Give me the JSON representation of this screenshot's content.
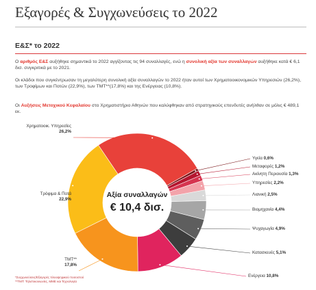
{
  "header": {
    "title": "Εξαγορές & Συγχωνεύσεις το 2022"
  },
  "section": {
    "title": "Ε&Σ* το 2022"
  },
  "paragraphs": [
    [
      "Ο ",
      "αριθμός Ε&Σ",
      " αυξήθηκε σημαντικά το 2022 αγγίζοντας τις 94 συναλλαγές, ενώ η ",
      "συνολική αξία των συναλλαγών",
      " αυξήθηκε κατά € 6,1 δισ. συγκριτικά με το 2021."
    ],
    [
      "Οι κλάδοι που συγκέντρωσαν τη μεγαλύτερη συνολική αξία συναλλαγών το 2022 ήταν αυτοί των Χρηματοοικονομικών Υπηρεσιών (26,2%), των Τροφίμων και Ποτών (22,9%), των TMT**(17,8%) και της Ενέργειας (10,8%)."
    ],
    [
      "Οι ",
      "Αυξήσεις Μετοχικού Κεφαλαίου",
      " στο Χρηματιστήριο Αθηνών που καλύφθηκαν από στρατηγικούς επενδυτές ανήλθαν σε μόλις € 489,1 εκ."
    ]
  ],
  "chart_data": {
    "type": "donut",
    "center_label": [
      "Αξία συναλλαγών",
      "€ 10,4 δισ."
    ],
    "categories": [
      "Χρηματοοικ. Υπηρεσίες",
      "Υγεία",
      "Μεταφορές",
      "Ακίνητη Περιουσία",
      "Υπηρεσίες",
      "Λιανική",
      "Βιομηχανία",
      "Ψυχαγωγία",
      "Κατασκευές",
      "Ενέργεια",
      "TMT**",
      "Τρόφιμα & Ποτά"
    ],
    "values": [
      26.2,
      0.6,
      1.2,
      1.3,
      2.2,
      2.5,
      4.4,
      4.9,
      5.1,
      10.8,
      17.8,
      22.9
    ],
    "value_labels": [
      "26,2%",
      "0,6%",
      "1,2%",
      "1,3%",
      "2,2%",
      "2,5%",
      "4,4%",
      "4,9%",
      "5,1%",
      "10,8%",
      "17,8%",
      "22,9%"
    ],
    "colors": [
      "#e8413a",
      "#7a1518",
      "#b5162f",
      "#d6344f",
      "#f3a3aa",
      "#d9d9d9",
      "#a6a6a6",
      "#5e5e5e",
      "#3d3d3d",
      "#e0245e",
      "#f7941d",
      "#fbbd18"
    ]
  },
  "footnotes": [
    "*Συγχωνεύσεις/Εξαγορές πλειοψηφικού ποσοστού",
    "**TMT: Τηλεπικοινωνίες, ΜΜΕ και Τεχνολογία"
  ]
}
